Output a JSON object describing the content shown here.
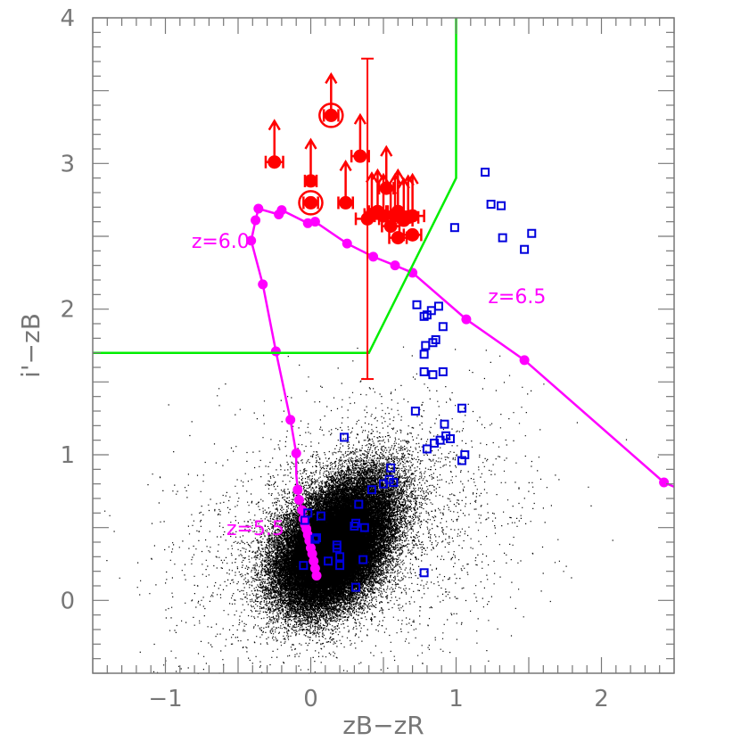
{
  "chart_data": {
    "type": "scatter",
    "title": "",
    "xlabel": "zB−zR",
    "ylabel": "i'−zB",
    "xlim": [
      -1.5,
      2.5
    ],
    "ylim": [
      -0.5,
      4.0
    ],
    "x_ticks": [
      "−1",
      "0",
      "1",
      "2"
    ],
    "y_ticks": [
      "0",
      "1",
      "2",
      "3",
      "4"
    ],
    "grid": false,
    "legend": "none",
    "colors": {
      "field": "#000000",
      "selection": "#00ee00",
      "candidates": "#ff0000",
      "contaminants": "#0000dd",
      "track": "#ff00ff"
    },
    "selection_boundary": {
      "points": [
        [
          -1.5,
          1.7
        ],
        [
          0.4,
          1.7
        ],
        [
          1.0,
          2.9
        ],
        [
          1.0,
          4.0
        ]
      ]
    },
    "model_track": {
      "labels": [
        {
          "text": "z=6.0",
          "x": -0.82,
          "y": 2.42
        },
        {
          "text": "z=6.5",
          "x": 1.22,
          "y": 2.04
        },
        {
          "text": "z=5.5",
          "x": -0.58,
          "y": 0.45
        }
      ],
      "points": [
        [
          0.04,
          0.17
        ],
        [
          0.03,
          0.22
        ],
        [
          0.02,
          0.27
        ],
        [
          0.01,
          0.32
        ],
        [
          0.0,
          0.36
        ],
        [
          -0.01,
          0.41
        ],
        [
          -0.02,
          0.45
        ],
        [
          -0.03,
          0.49
        ],
        [
          -0.04,
          0.52
        ],
        [
          -0.05,
          0.56
        ],
        [
          -0.06,
          0.62
        ],
        [
          -0.08,
          0.69
        ],
        [
          -0.09,
          0.76
        ],
        [
          -0.1,
          0.87
        ],
        [
          -0.1,
          1.01
        ],
        [
          -0.14,
          1.24
        ],
        [
          -0.24,
          1.71
        ],
        [
          -0.33,
          2.17
        ],
        [
          -0.41,
          2.47
        ],
        [
          -0.38,
          2.61
        ],
        [
          -0.36,
          2.69
        ],
        [
          -0.22,
          2.65
        ],
        [
          -0.2,
          2.68
        ],
        [
          -0.02,
          2.59
        ],
        [
          0.03,
          2.6
        ],
        [
          0.25,
          2.45
        ],
        [
          0.43,
          2.36
        ],
        [
          0.58,
          2.3
        ],
        [
          0.7,
          2.25
        ],
        [
          1.07,
          1.93
        ],
        [
          1.47,
          1.65
        ],
        [
          2.43,
          0.81
        ],
        [
          2.5,
          0.78
        ]
      ],
      "marker_indices": [
        0,
        1,
        2,
        3,
        4,
        5,
        6,
        7,
        8,
        9,
        10,
        11,
        12,
        14,
        15,
        16,
        17,
        18,
        19,
        20,
        21,
        22,
        23,
        24,
        25,
        26,
        27,
        28,
        29,
        30,
        31
      ]
    },
    "candidates": [
      {
        "x": -0.25,
        "y": 3.01,
        "xerr": 0.06,
        "limit": true
      },
      {
        "x": 0.14,
        "y": 3.33,
        "xerr": 0.05,
        "limit": true,
        "circled": true
      },
      {
        "x": 0.0,
        "y": 2.73,
        "xerr": 0.05,
        "limit": false,
        "circled": true
      },
      {
        "x": 0.0,
        "y": 2.88,
        "xerr": 0.04,
        "limit": true
      },
      {
        "x": 0.24,
        "y": 2.73,
        "xerr": 0.05,
        "limit": true
      },
      {
        "x": 0.34,
        "y": 3.05,
        "xerr": 0.06,
        "limit": true
      },
      {
        "x": 0.39,
        "y": 2.62,
        "xerr": 0.08,
        "yerr": [
          1.1,
          1.1
        ],
        "limit": false
      },
      {
        "x": 0.42,
        "y": 2.65,
        "xerr": 0.05,
        "limit": true
      },
      {
        "x": 0.46,
        "y": 2.67,
        "xerr": 0.06,
        "limit": true
      },
      {
        "x": 0.5,
        "y": 2.64,
        "xerr": 0.06,
        "limit": true
      },
      {
        "x": 0.52,
        "y": 2.83,
        "xerr": 0.05,
        "limit": true
      },
      {
        "x": 0.55,
        "y": 2.57,
        "xerr": 0.06,
        "limit": true
      },
      {
        "x": 0.58,
        "y": 2.64,
        "xerr": 0.06,
        "limit": true
      },
      {
        "x": 0.6,
        "y": 2.67,
        "xerr": 0.07,
        "limit": true
      },
      {
        "x": 0.64,
        "y": 2.61,
        "xerr": 0.06,
        "limit": true
      },
      {
        "x": 0.67,
        "y": 2.63,
        "xerr": 0.07,
        "limit": true
      },
      {
        "x": 0.6,
        "y": 2.49,
        "xerr": 0.06,
        "limit": false
      },
      {
        "x": 0.7,
        "y": 2.51,
        "xerr": 0.06,
        "limit": false
      },
      {
        "x": 0.7,
        "y": 2.64,
        "xerr": 0.08,
        "limit": true
      }
    ],
    "contaminants": [
      [
        1.2,
        2.94
      ],
      [
        1.24,
        2.72
      ],
      [
        1.31,
        2.71
      ],
      [
        1.32,
        2.49
      ],
      [
        1.47,
        2.41
      ],
      [
        1.52,
        2.52
      ],
      [
        0.99,
        2.56
      ],
      [
        0.73,
        2.03
      ],
      [
        0.78,
        1.95
      ],
      [
        0.8,
        1.96
      ],
      [
        0.83,
        1.99
      ],
      [
        0.88,
        2.02
      ],
      [
        0.86,
        1.79
      ],
      [
        0.91,
        1.88
      ],
      [
        0.79,
        1.75
      ],
      [
        0.78,
        1.69
      ],
      [
        0.84,
        1.77
      ],
      [
        0.78,
        1.57
      ],
      [
        0.84,
        1.55
      ],
      [
        0.91,
        1.57
      ],
      [
        0.72,
        1.3
      ],
      [
        0.92,
        1.21
      ],
      [
        0.93,
        1.13
      ],
      [
        0.96,
        1.11
      ],
      [
        1.04,
        1.32
      ],
      [
        0.85,
        1.08
      ],
      [
        0.89,
        1.1
      ],
      [
        0.8,
        1.04
      ],
      [
        1.06,
        1.0
      ],
      [
        1.04,
        0.96
      ],
      [
        0.55,
        0.91
      ],
      [
        0.54,
        0.83
      ],
      [
        0.57,
        0.81
      ],
      [
        0.5,
        0.8
      ],
      [
        0.42,
        0.76
      ],
      [
        0.33,
        0.66
      ],
      [
        0.23,
        1.12
      ],
      [
        0.07,
        0.58
      ],
      [
        -0.02,
        0.6
      ],
      [
        -0.04,
        0.55
      ],
      [
        0.04,
        0.43
      ],
      [
        0.18,
        0.38
      ],
      [
        0.31,
        0.53
      ],
      [
        0.37,
        0.5
      ],
      [
        0.3,
        0.51
      ],
      [
        0.18,
        0.36
      ],
      [
        0.2,
        0.3
      ],
      [
        0.12,
        0.27
      ],
      [
        0.2,
        0.24
      ],
      [
        0.36,
        0.28
      ],
      [
        -0.05,
        0.24
      ],
      [
        0.31,
        0.09
      ],
      [
        0.78,
        0.19
      ],
      [
        0.03,
        0.42
      ]
    ],
    "field_scatter": {
      "n_points": 60000,
      "cores": [
        {
          "cx": 0.22,
          "cy": 0.45,
          "sx": 0.19,
          "sy": 0.22,
          "rho": 0.45
        },
        {
          "cx": 0.1,
          "cy": 0.3,
          "sx": 0.17,
          "sy": 0.18,
          "rho": 0.25
        }
      ]
    }
  }
}
